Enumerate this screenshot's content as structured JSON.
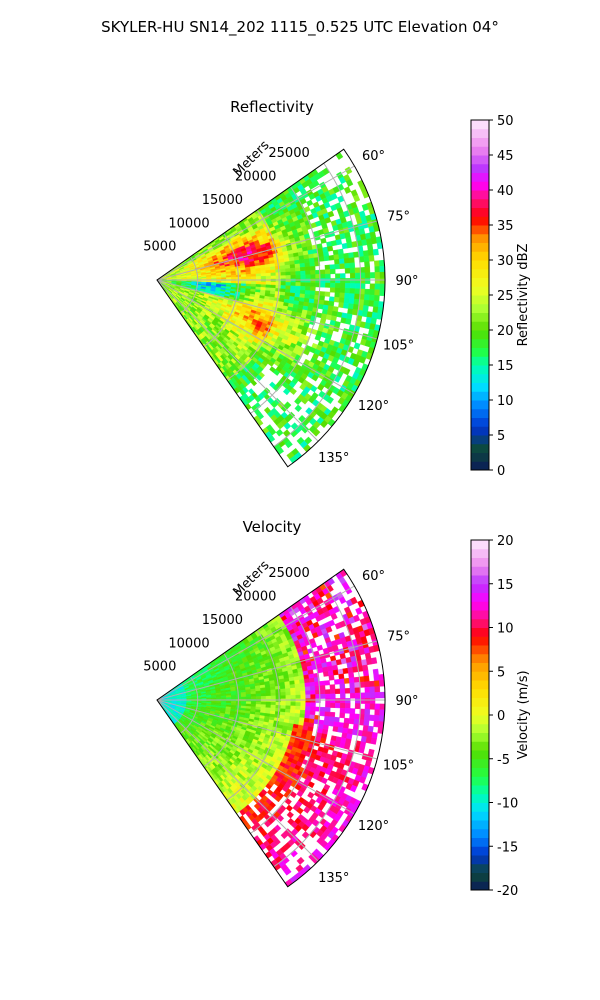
{
  "figure": {
    "suptitle": "SKYLER-HU  SN14_202  1115_0.525 UTC Elevation 04°"
  },
  "chart_data": [
    {
      "type": "heatmap",
      "subtype": "polar-sector",
      "title": "Reflectivity",
      "range_axis_label": "Meters",
      "range_ticks": [
        5000,
        10000,
        15000,
        20000,
        25000
      ],
      "range_tick_labels": [
        "5000",
        "10000",
        "15000",
        "20000",
        "25000"
      ],
      "range_max": 28000,
      "azimuth_range": [
        55,
        145
      ],
      "azimuth_ticks": [
        60,
        75,
        90,
        105,
        120,
        135
      ],
      "azimuth_tick_labels": [
        "60°",
        "75°",
        "90°",
        "105°",
        "120°",
        "135°"
      ],
      "grid": true,
      "colorbar": {
        "label": "Reflectivity dBZ",
        "range": [
          0,
          50
        ],
        "ticks": [
          0,
          5,
          10,
          15,
          20,
          25,
          30,
          35,
          40,
          45,
          50
        ],
        "tick_labels": [
          "0",
          "5",
          "10",
          "15",
          "20",
          "25",
          "30",
          "35",
          "40",
          "45",
          "50"
        ],
        "stops": [
          {
            "value": 0,
            "color": "#0a1a5a"
          },
          {
            "value": 3,
            "color": "#0d4a3a"
          },
          {
            "value": 6,
            "color": "#0033cc"
          },
          {
            "value": 9,
            "color": "#0080ff"
          },
          {
            "value": 12,
            "color": "#00e0ff"
          },
          {
            "value": 15,
            "color": "#00ffb0"
          },
          {
            "value": 17,
            "color": "#22ff44"
          },
          {
            "value": 20,
            "color": "#55dd00"
          },
          {
            "value": 23,
            "color": "#aaff33"
          },
          {
            "value": 26,
            "color": "#eeff22"
          },
          {
            "value": 30,
            "color": "#ffdd00"
          },
          {
            "value": 33,
            "color": "#ff9900"
          },
          {
            "value": 36,
            "color": "#ff0000"
          },
          {
            "value": 39,
            "color": "#ff1188"
          },
          {
            "value": 41,
            "color": "#ff00ff"
          },
          {
            "value": 43,
            "color": "#bb33ff"
          },
          {
            "value": 46,
            "color": "#ee88ee"
          },
          {
            "value": 50,
            "color": "#ffeeff"
          }
        ]
      }
    },
    {
      "type": "heatmap",
      "subtype": "polar-sector",
      "title": "Velocity",
      "range_axis_label": "Meters",
      "range_ticks": [
        5000,
        10000,
        15000,
        20000,
        25000
      ],
      "range_tick_labels": [
        "5000",
        "10000",
        "15000",
        "20000",
        "25000"
      ],
      "range_max": 28000,
      "azimuth_range": [
        55,
        145
      ],
      "azimuth_ticks": [
        60,
        75,
        90,
        105,
        120,
        135
      ],
      "azimuth_tick_labels": [
        "60°",
        "75°",
        "90°",
        "105°",
        "120°",
        "135°"
      ],
      "grid": true,
      "colorbar": {
        "label": "Velocity (m/s)",
        "range": [
          -20,
          20
        ],
        "ticks": [
          -20,
          -15,
          -10,
          -5,
          0,
          5,
          10,
          15,
          20
        ],
        "tick_labels": [
          "-20",
          "-15",
          "-10",
          "-5",
          "0",
          "5",
          "10",
          "15",
          "20"
        ],
        "stops": [
          {
            "value": -20,
            "color": "#0a1a5a"
          },
          {
            "value": -18,
            "color": "#0d4a3a"
          },
          {
            "value": -16,
            "color": "#0033cc"
          },
          {
            "value": -14,
            "color": "#0080ff"
          },
          {
            "value": -11,
            "color": "#00e0ff"
          },
          {
            "value": -9,
            "color": "#00ffb0"
          },
          {
            "value": -7,
            "color": "#22ff44"
          },
          {
            "value": -4,
            "color": "#55dd00"
          },
          {
            "value": -2,
            "color": "#aaff33"
          },
          {
            "value": 0,
            "color": "#eeff22"
          },
          {
            "value": 3,
            "color": "#ffdd00"
          },
          {
            "value": 6,
            "color": "#ff9900"
          },
          {
            "value": 9,
            "color": "#ff0000"
          },
          {
            "value": 11,
            "color": "#ff1188"
          },
          {
            "value": 13,
            "color": "#ff00ff"
          },
          {
            "value": 15,
            "color": "#bb33ff"
          },
          {
            "value": 17,
            "color": "#ee88ee"
          },
          {
            "value": 20,
            "color": "#ffeeff"
          }
        ]
      }
    }
  ]
}
